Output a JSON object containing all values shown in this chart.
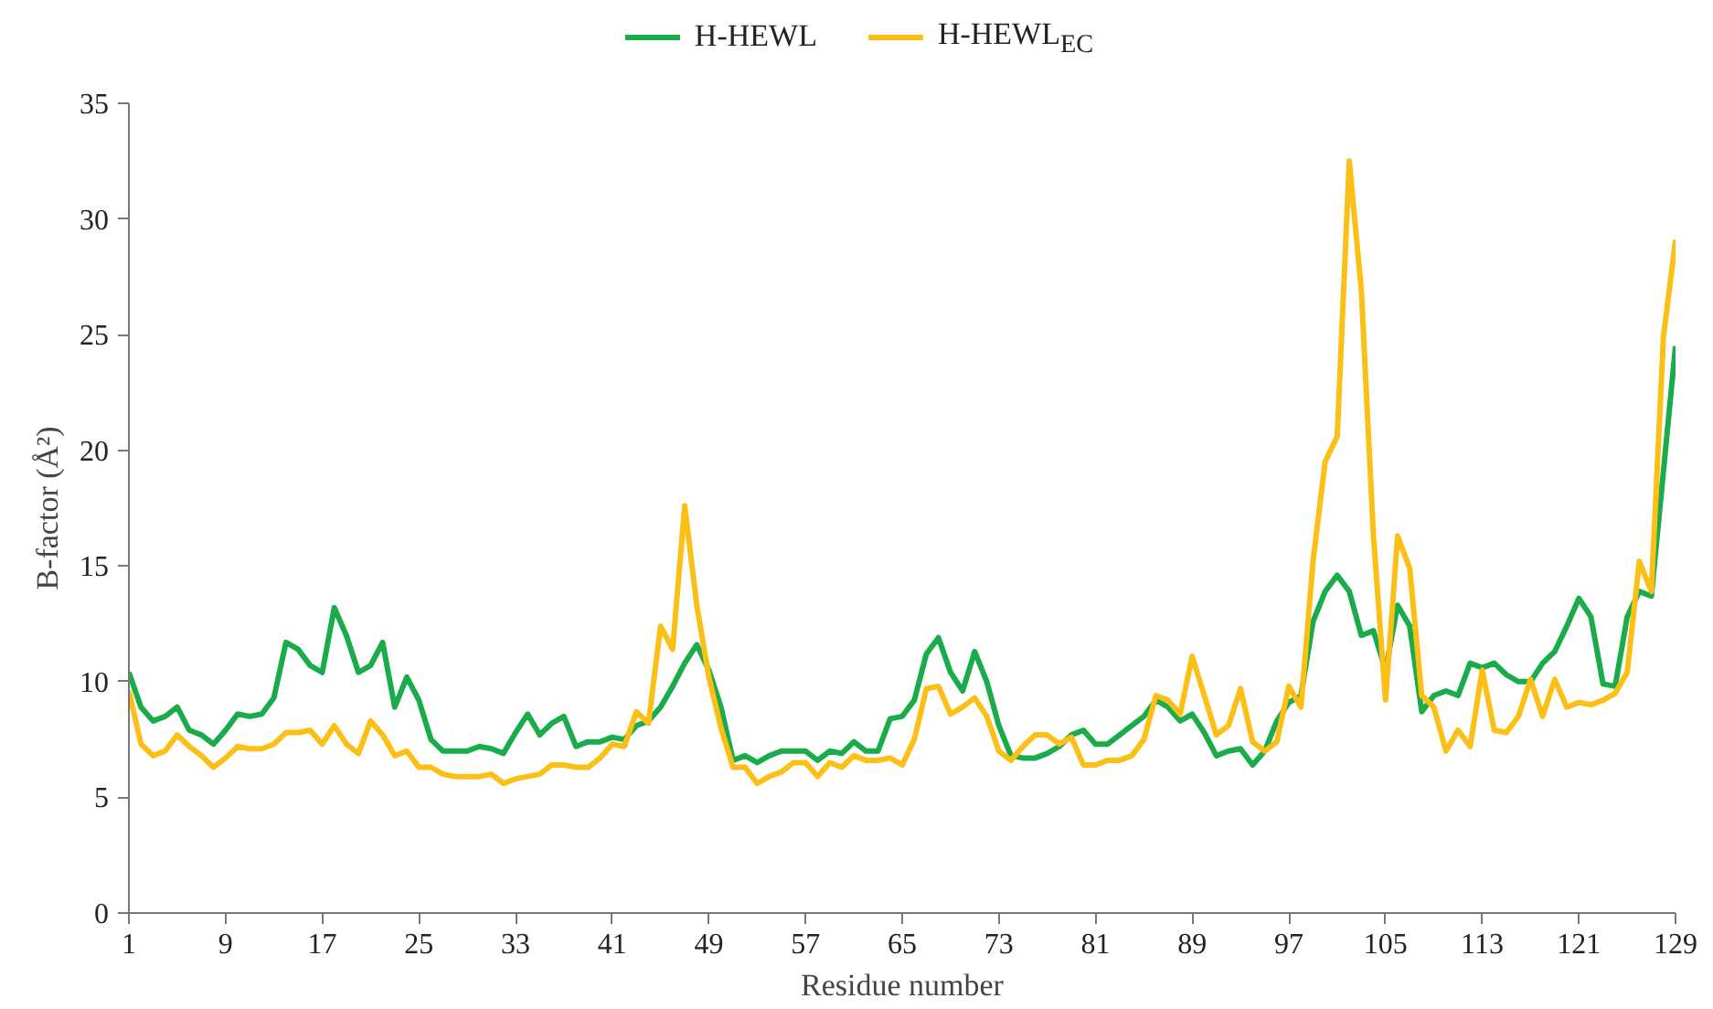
{
  "chart_data": {
    "type": "line",
    "xlabel": "Residue number",
    "ylabel": "B-factor (Å²)",
    "x": [
      1,
      2,
      3,
      4,
      5,
      6,
      7,
      8,
      9,
      10,
      11,
      12,
      13,
      14,
      15,
      16,
      17,
      18,
      19,
      20,
      21,
      22,
      23,
      24,
      25,
      26,
      27,
      28,
      29,
      30,
      31,
      32,
      33,
      34,
      35,
      36,
      37,
      38,
      39,
      40,
      41,
      42,
      43,
      44,
      45,
      46,
      47,
      48,
      49,
      50,
      51,
      52,
      53,
      54,
      55,
      56,
      57,
      58,
      59,
      60,
      61,
      62,
      63,
      64,
      65,
      66,
      67,
      68,
      69,
      70,
      71,
      72,
      73,
      74,
      75,
      76,
      77,
      78,
      79,
      80,
      81,
      82,
      83,
      84,
      85,
      86,
      87,
      88,
      89,
      90,
      91,
      92,
      93,
      94,
      95,
      96,
      97,
      98,
      99,
      100,
      101,
      102,
      103,
      104,
      105,
      106,
      107,
      108,
      109,
      110,
      111,
      112,
      113,
      114,
      115,
      116,
      117,
      118,
      119,
      120,
      121,
      122,
      123,
      124,
      125,
      126,
      127,
      128,
      129
    ],
    "series": [
      {
        "name": "H-HEWL",
        "color": "#1aab4b",
        "values": [
          10.4,
          8.9,
          8.3,
          8.5,
          8.9,
          7.9,
          7.7,
          7.3,
          7.9,
          8.6,
          8.5,
          8.6,
          9.3,
          11.7,
          11.4,
          10.7,
          10.4,
          13.2,
          12.0,
          10.4,
          10.7,
          11.7,
          8.9,
          10.2,
          9.2,
          7.5,
          7.0,
          7.0,
          7.0,
          7.2,
          7.1,
          6.9,
          7.8,
          8.6,
          7.7,
          8.2,
          8.5,
          7.2,
          7.4,
          7.4,
          7.6,
          7.5,
          8.1,
          8.3,
          8.9,
          9.8,
          10.8,
          11.6,
          10.5,
          8.9,
          6.6,
          6.8,
          6.5,
          6.8,
          7.0,
          7.0,
          7.0,
          6.6,
          7.0,
          6.9,
          7.4,
          7.0,
          7.0,
          8.4,
          8.5,
          9.2,
          11.2,
          11.9,
          10.4,
          9.6,
          11.3,
          10.0,
          8.1,
          6.8,
          6.7,
          6.7,
          6.9,
          7.2,
          7.7,
          7.9,
          7.3,
          7.3,
          7.7,
          8.1,
          8.5,
          9.2,
          8.9,
          8.3,
          8.6,
          7.8,
          6.8,
          7.0,
          7.1,
          6.4,
          7.0,
          8.3,
          9.1,
          9.4,
          12.6,
          13.9,
          14.6,
          13.9,
          12.0,
          12.2,
          10.5,
          13.3,
          12.4,
          8.7,
          9.4,
          9.6,
          9.4,
          10.8,
          10.6,
          10.8,
          10.3,
          10.0,
          10.0,
          10.8,
          11.3,
          12.4,
          13.6,
          12.8,
          9.9,
          9.8,
          12.8,
          13.9,
          13.7,
          19.1,
          24.5
        ]
      },
      {
        "name": "H-HEWL$_{EC}$",
        "color": "#fbbf16",
        "values": [
          9.6,
          7.3,
          6.8,
          7.0,
          7.7,
          7.2,
          6.8,
          6.3,
          6.7,
          7.2,
          7.1,
          7.1,
          7.3,
          7.8,
          7.8,
          7.9,
          7.3,
          8.1,
          7.3,
          6.9,
          8.3,
          7.7,
          6.8,
          7.0,
          6.3,
          6.3,
          6.0,
          5.9,
          5.9,
          5.9,
          6.0,
          5.6,
          5.8,
          5.9,
          6.0,
          6.4,
          6.4,
          6.3,
          6.3,
          6.7,
          7.3,
          7.2,
          8.7,
          8.2,
          12.4,
          11.4,
          17.6,
          13.3,
          10.2,
          8.0,
          6.3,
          6.3,
          5.6,
          5.9,
          6.1,
          6.5,
          6.5,
          5.9,
          6.5,
          6.3,
          6.8,
          6.6,
          6.6,
          6.7,
          6.4,
          7.5,
          9.7,
          9.8,
          8.6,
          8.9,
          9.3,
          8.5,
          7.0,
          6.6,
          7.2,
          7.7,
          7.7,
          7.3,
          7.6,
          6.4,
          6.4,
          6.6,
          6.6,
          6.8,
          7.5,
          9.4,
          9.2,
          8.6,
          11.1,
          9.4,
          7.7,
          8.1,
          9.7,
          7.4,
          7.0,
          7.4,
          9.8,
          8.9,
          15.2,
          19.5,
          20.6,
          32.5,
          26.9,
          16.3,
          9.2,
          16.3,
          14.9,
          9.4,
          8.9,
          7.0,
          7.9,
          7.2,
          10.5,
          7.9,
          7.8,
          8.5,
          10.1,
          8.5,
          10.1,
          8.9,
          9.1,
          9.0,
          9.2,
          9.5,
          10.4,
          15.2,
          13.9,
          24.9,
          29.1
        ]
      }
    ],
    "xlim": [
      1,
      129
    ],
    "xticks": [
      1,
      9,
      17,
      25,
      33,
      41,
      49,
      57,
      65,
      73,
      81,
      89,
      97,
      105,
      113,
      121,
      129
    ],
    "ylim": [
      0,
      35
    ],
    "yticks": [
      0,
      5,
      10,
      15,
      20,
      25,
      30,
      35
    ],
    "legend": "top",
    "grid": false,
    "marker": "none",
    "line_style": "solid"
  }
}
